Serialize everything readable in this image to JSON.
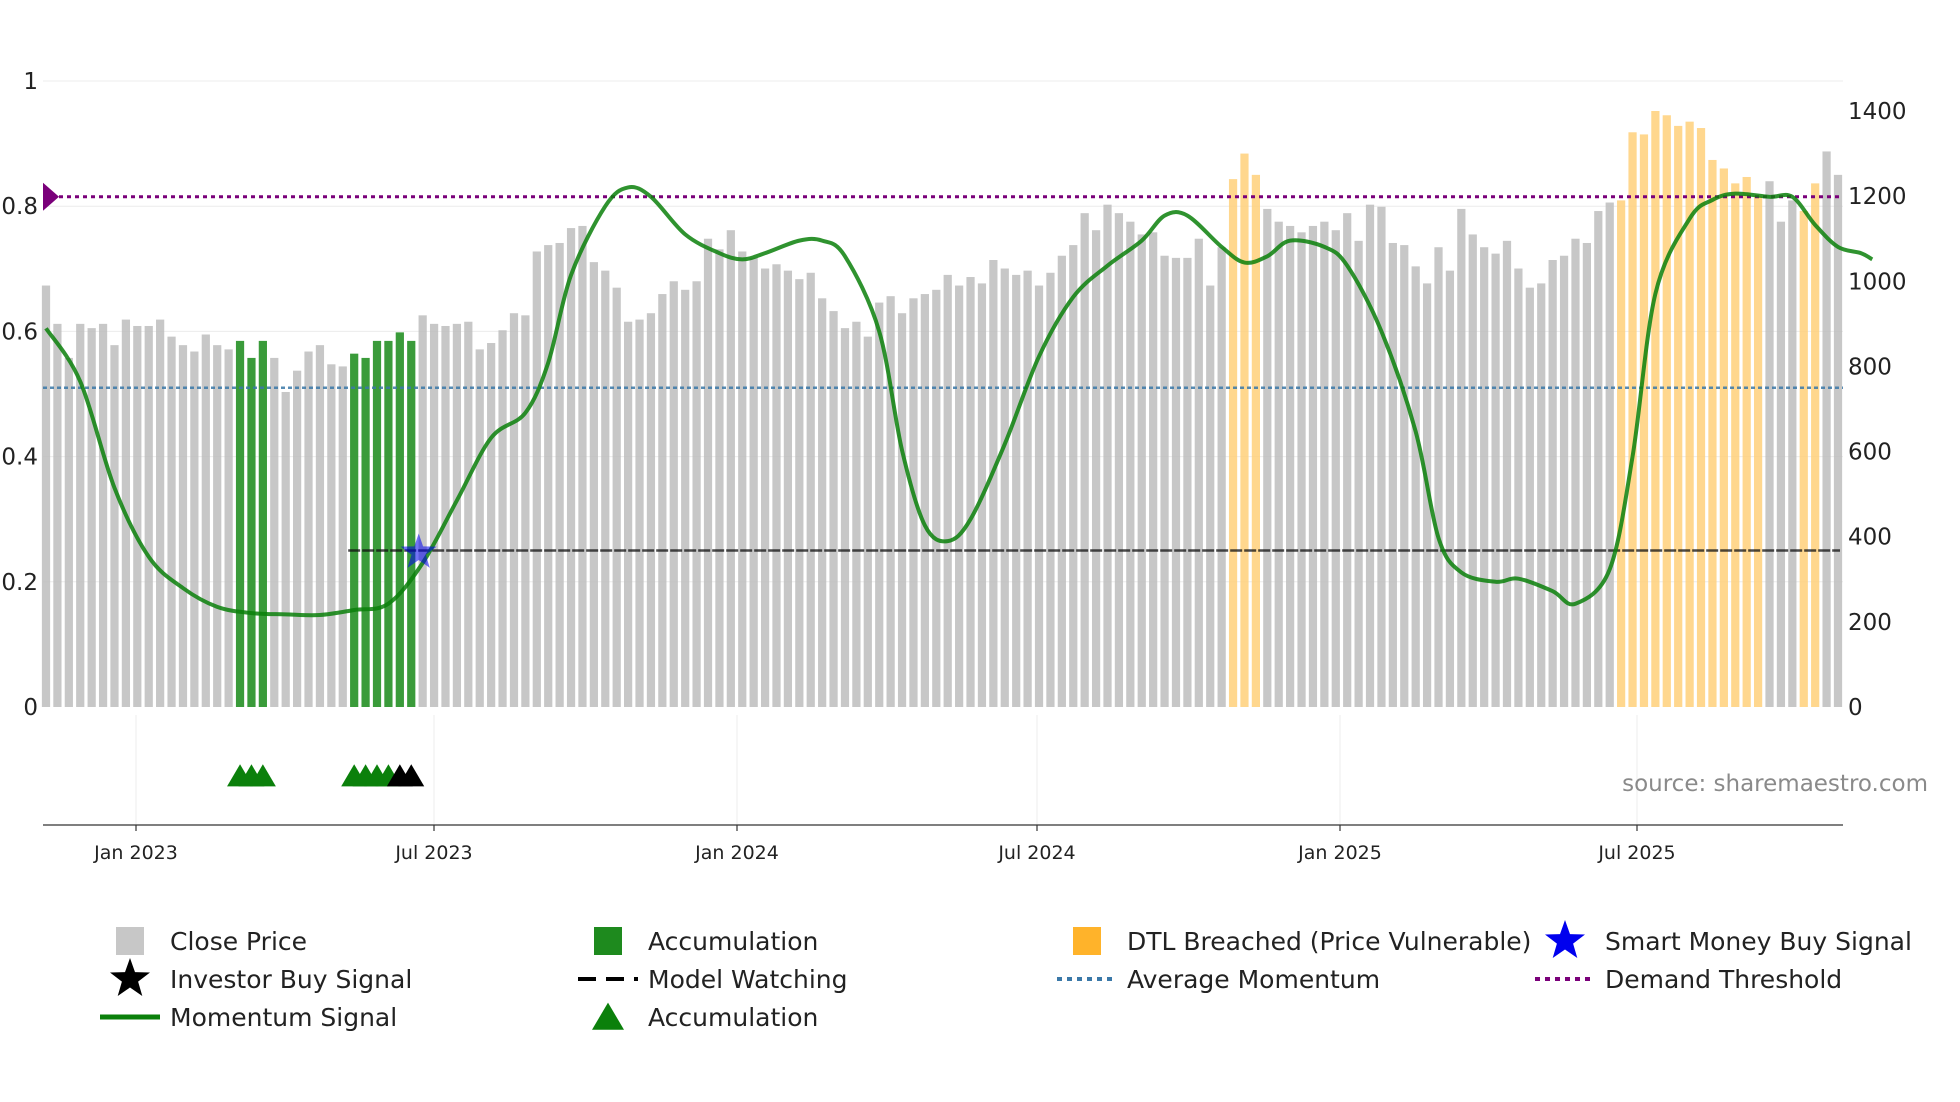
{
  "chart_data": {
    "type": "bar+line",
    "source_label": "source: sharemaestro.com",
    "x_ticks": [
      "Jan 2023",
      "Jul 2023",
      "Jan 2024",
      "Jul 2024",
      "Jan 2025",
      "Jul 2025"
    ],
    "left_axis": {
      "ticks": [
        "1",
        "0.8",
        "0.6",
        "0.4",
        "0.2",
        "0"
      ],
      "range": [
        0,
        1
      ]
    },
    "right_axis": {
      "ticks": [
        "1400",
        "1200",
        "1000",
        "800",
        "600",
        "400",
        "200",
        "0"
      ],
      "range": [
        0,
        1400
      ]
    },
    "close_price": [
      990,
      900,
      820,
      900,
      890,
      900,
      850,
      910,
      895,
      895,
      910,
      870,
      850,
      835,
      875,
      850,
      840,
      860,
      820,
      860,
      820,
      740,
      790,
      835,
      850,
      805,
      800,
      830,
      820,
      860,
      860,
      880,
      860,
      920,
      900,
      895,
      900,
      905,
      840,
      855,
      885,
      925,
      920,
      1070,
      1085,
      1090,
      1125,
      1130,
      1045,
      1025,
      985,
      905,
      910,
      925,
      970,
      1000,
      980,
      1000,
      1100,
      1075,
      1120,
      1070,
      1055,
      1030,
      1040,
      1025,
      1005,
      1020,
      960,
      930,
      890,
      905,
      870,
      950,
      965,
      925,
      960,
      970,
      980,
      1015,
      990,
      1010,
      995,
      1050,
      1030,
      1015,
      1025,
      990,
      1020,
      1060,
      1085,
      1160,
      1120,
      1180,
      1160,
      1140,
      1110,
      1115,
      1060,
      1055,
      1055,
      1100,
      990,
      1080,
      1240,
      1300,
      1250,
      1170,
      1140,
      1130,
      1115,
      1130,
      1140,
      1120,
      1160,
      1095,
      1180,
      1175,
      1090,
      1085,
      1035,
      995,
      1080,
      1025,
      1170,
      1110,
      1080,
      1065,
      1095,
      1030,
      985,
      995,
      1050,
      1060,
      1100,
      1090,
      1165,
      1185,
      1190,
      1350,
      1345,
      1400,
      1390,
      1365,
      1375,
      1360,
      1285,
      1265,
      1230,
      1245,
      1200,
      1235,
      1140,
      1190,
      1165,
      1230,
      1305,
      1250
    ],
    "close_price_categories": {
      "accumulation": [
        17,
        18,
        19,
        27,
        28,
        29,
        30,
        31,
        32
      ],
      "dtl_breached": [
        104,
        105,
        106,
        138,
        139,
        140,
        141,
        142,
        143,
        144,
        145,
        146,
        147,
        148,
        149,
        150,
        154,
        155
      ]
    },
    "momentum_signal": [
      [
        0,
        0.605
      ],
      [
        3,
        0.52
      ],
      [
        6,
        0.35
      ],
      [
        9,
        0.24
      ],
      [
        12,
        0.19
      ],
      [
        15,
        0.16
      ],
      [
        18,
        0.15
      ],
      [
        21,
        0.148
      ],
      [
        24,
        0.147
      ],
      [
        27,
        0.155
      ],
      [
        30,
        0.165
      ],
      [
        33,
        0.23
      ],
      [
        36,
        0.33
      ],
      [
        39,
        0.43
      ],
      [
        42,
        0.47
      ],
      [
        44,
        0.55
      ],
      [
        46,
        0.69
      ],
      [
        49,
        0.8
      ],
      [
        51,
        0.83
      ],
      [
        53,
        0.815
      ],
      [
        56,
        0.755
      ],
      [
        59,
        0.725
      ],
      [
        61,
        0.715
      ],
      [
        63,
        0.725
      ],
      [
        66,
        0.745
      ],
      [
        68,
        0.745
      ],
      [
        70,
        0.72
      ],
      [
        73,
        0.6
      ],
      [
        75,
        0.41
      ],
      [
        77,
        0.29
      ],
      [
        79,
        0.265
      ],
      [
        81,
        0.3
      ],
      [
        84,
        0.42
      ],
      [
        87,
        0.56
      ],
      [
        90,
        0.655
      ],
      [
        93,
        0.705
      ],
      [
        96,
        0.745
      ],
      [
        98,
        0.785
      ],
      [
        100,
        0.785
      ],
      [
        103,
        0.735
      ],
      [
        105,
        0.71
      ],
      [
        107,
        0.72
      ],
      [
        109,
        0.745
      ],
      [
        112,
        0.735
      ],
      [
        114,
        0.705
      ],
      [
        117,
        0.6
      ],
      [
        120,
        0.44
      ],
      [
        122,
        0.27
      ],
      [
        124,
        0.215
      ],
      [
        127,
        0.2
      ],
      [
        129,
        0.205
      ],
      [
        132,
        0.185
      ],
      [
        134,
        0.165
      ],
      [
        137,
        0.22
      ],
      [
        139,
        0.4
      ],
      [
        141,
        0.66
      ],
      [
        144,
        0.78
      ],
      [
        146,
        0.81
      ],
      [
        148,
        0.82
      ],
      [
        151,
        0.815
      ],
      [
        153,
        0.815
      ],
      [
        155,
        0.77
      ],
      [
        157,
        0.735
      ],
      [
        159,
        0.725
      ],
      [
        160,
        0.715
      ]
    ],
    "average_momentum": 0.51,
    "demand_threshold": 0.815,
    "model_watching": {
      "value": 0.25,
      "from_index": 27,
      "to_index": 160
    },
    "smart_money_buy_signal": {
      "index": 33,
      "value": 0.25
    },
    "accumulation_markers": [
      17,
      18,
      19,
      27,
      28,
      29,
      30
    ],
    "investor_buy_signals": [
      31,
      32
    ],
    "legend": [
      {
        "key": "close",
        "label": "Close Price",
        "color": "#bdbdbd"
      },
      {
        "key": "accum_bar",
        "label": "Accumulation",
        "color": "#1e8a1e"
      },
      {
        "key": "dtl",
        "label": "DTL Breached (Price Vulnerable)",
        "color": "#ffb32a"
      },
      {
        "key": "smart",
        "label": "Smart Money Buy Signal",
        "color": "#0000ee"
      },
      {
        "key": "investor",
        "label": "Investor Buy Signal",
        "color": "#000000"
      },
      {
        "key": "watching",
        "label": "Model Watching",
        "color": "#000000"
      },
      {
        "key": "avg",
        "label": "Average Momentum",
        "color": "#3a78a8"
      },
      {
        "key": "demand",
        "label": "Demand Threshold",
        "color": "#7a007a"
      },
      {
        "key": "momentum",
        "label": "Momentum Signal",
        "color": "#0b800b"
      },
      {
        "key": "accum_marker",
        "label": "Accumulation",
        "color": "#0b800b"
      }
    ]
  }
}
